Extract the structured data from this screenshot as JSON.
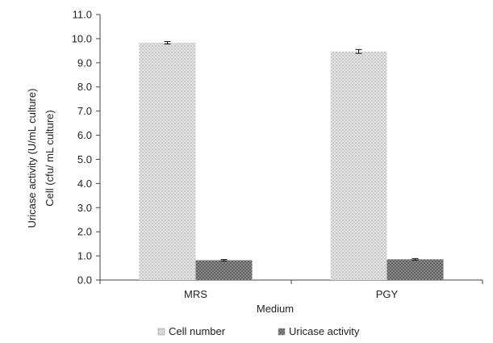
{
  "chart_data": {
    "type": "bar",
    "categories": [
      "MRS",
      "PGY"
    ],
    "series": [
      {
        "name": "Cell number",
        "values": [
          9.83,
          9.47
        ],
        "errors": [
          0.05,
          0.08
        ],
        "pattern": "light-dotted",
        "color": "#d9d9d9"
      },
      {
        "name": "Uricase activity",
        "values": [
          0.82,
          0.86
        ],
        "errors": [
          0.03,
          0.03
        ],
        "pattern": "dark-crosshatch",
        "color": "#8c8c8c"
      }
    ],
    "xlabel": "Medium",
    "ylabel": [
      "Uricase activity (U/mL culture)",
      "Cell (cfu/ mL culture)"
    ],
    "ylim": [
      0,
      11
    ],
    "yticks": [
      "0.0",
      "1.0",
      "2.0",
      "3.0",
      "4.0",
      "5.0",
      "6.0",
      "7.0",
      "8.0",
      "9.0",
      "10.0",
      "11.0"
    ],
    "grid": false,
    "legend_position": "bottom"
  }
}
